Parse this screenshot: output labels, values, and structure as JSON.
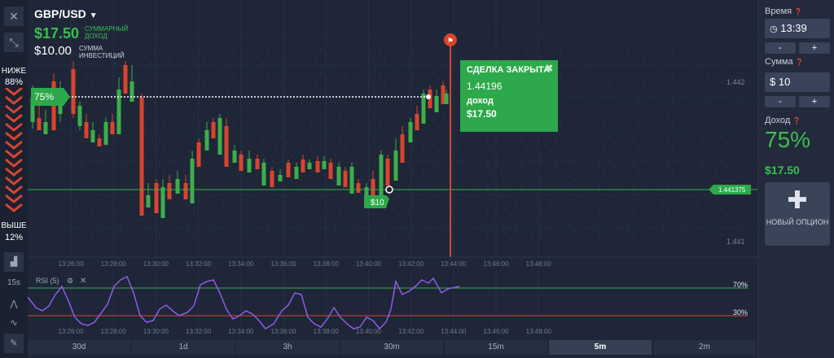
{
  "asset": {
    "name": "GBP/USD"
  },
  "summary": {
    "profit": "$17.50",
    "profit_label": "СУММАРНЫЙ ДОХОД",
    "investment": "$10.00",
    "investment_label": "СУММА ИНВЕСТИЦИЙ"
  },
  "sentiment": {
    "lower_label": "НИЖЕ",
    "lower_pct": "88%",
    "higher_label": "ВЫШЕ",
    "higher_pct": "12%"
  },
  "chart": {
    "strike_marker": "75%",
    "trade_marker": "$10",
    "price_tag": "1.441375",
    "price_ticks": [
      "1.442",
      "1.441"
    ],
    "time_ticks": [
      "13:26:00",
      "13:28:00",
      "13:30:00",
      "13:32:00",
      "13:34:00",
      "13:36:00",
      "13:38:00",
      "13:40:00",
      "13:42:00",
      "13:44:00",
      "13:46:00",
      "13:48:00"
    ],
    "colors": {
      "up": "#3cae4b",
      "down": "#d7452f",
      "background": "#1e2637"
    }
  },
  "indicator": {
    "interval": "15s",
    "name": "RSI (5)",
    "level_high": "70%",
    "level_low": "30%"
  },
  "deal": {
    "title": "СДЕЛКА ЗАКРЫТА",
    "price": "1.44196",
    "income_label": "доход",
    "income": "$17.50"
  },
  "right_panel": {
    "time_label": "Время",
    "time_value": "13:39",
    "amount_label": "Сумма",
    "amount_value": "$ 10",
    "minus": "-",
    "plus": "+",
    "income_label": "Доход",
    "payout": "75%",
    "profit": "$17.50",
    "new_option": "НОВЫЙ ОПЦИОН"
  },
  "timeframes": [
    {
      "label": "30d",
      "active": false
    },
    {
      "label": "1d",
      "active": false
    },
    {
      "label": "3h",
      "active": false
    },
    {
      "label": "30m",
      "active": false
    },
    {
      "label": "15m",
      "active": false
    },
    {
      "label": "5m",
      "active": true
    },
    {
      "label": "2m",
      "active": false
    }
  ]
}
